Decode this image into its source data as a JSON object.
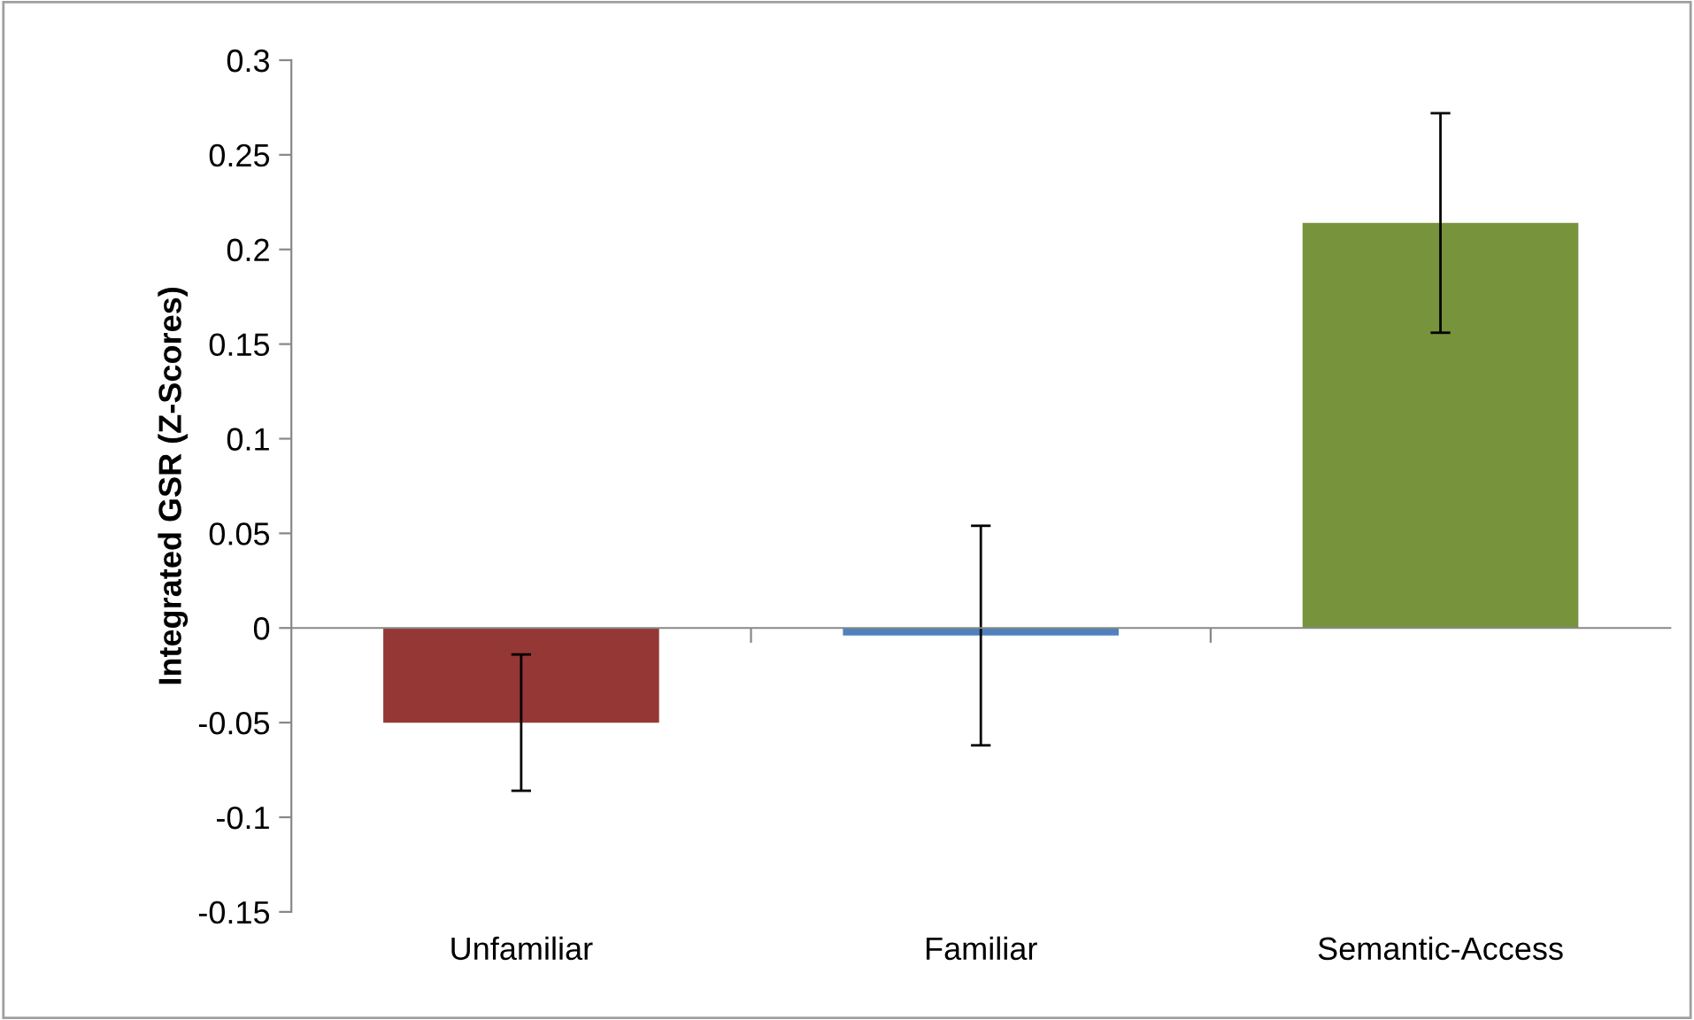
{
  "chart_data": {
    "type": "bar",
    "ylabel": "Integrated GSR (Z-Scores)",
    "categories": [
      "Unfamiliar",
      "Familiar",
      "Semantic-Access"
    ],
    "values": [
      -0.05,
      -0.004,
      0.214
    ],
    "colors": [
      "#953735",
      "#4f81bd",
      "#77933c"
    ],
    "errors": [
      0.036,
      0.058,
      0.058
    ],
    "ylim": [
      -0.15,
      0.3
    ],
    "yticks": [
      -0.15,
      -0.1,
      -0.05,
      0,
      0.05,
      0.1,
      0.15,
      0.2,
      0.25,
      0.3
    ],
    "legend": false
  }
}
